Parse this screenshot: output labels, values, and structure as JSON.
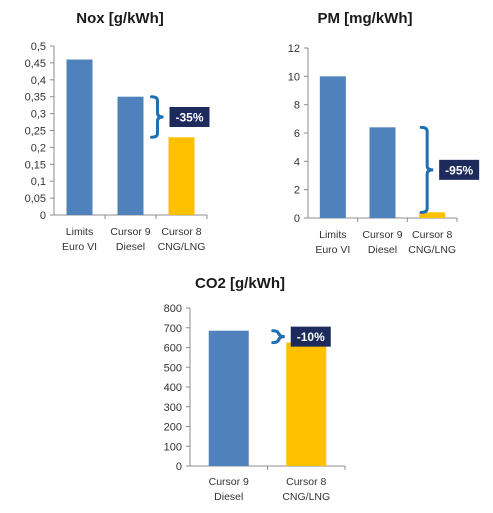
{
  "colors": {
    "blue": "#4F81BD",
    "yellow": "#FFC000",
    "bracket": "#1F6FB5",
    "callout_bg": "#1C2A5C",
    "axis": "#8c8c8c"
  },
  "chart_data": [
    {
      "type": "bar",
      "title": "Nox [g/kWh]",
      "categories": [
        [
          "Limits",
          "Euro VI"
        ],
        [
          "Cursor 9",
          "Diesel"
        ],
        [
          "Cursor 8",
          "CNG/LNG"
        ]
      ],
      "values": [
        0.46,
        0.35,
        0.23
      ],
      "bar_colors": [
        "blue",
        "blue",
        "yellow"
      ],
      "ylim": [
        0,
        0.5
      ],
      "yticks": [
        0,
        0.05,
        0.1,
        0.15,
        0.2,
        0.25,
        0.3,
        0.35,
        0.4,
        0.45,
        0.5
      ],
      "ytick_labels": [
        "0",
        "0,05",
        "0,1",
        "0,15",
        "0,2",
        "0,25",
        "0,3",
        "0,35",
        "0,4",
        "0,45",
        "0,5"
      ],
      "annotation": {
        "text": "-35%",
        "from": 0.35,
        "to": 0.23
      }
    },
    {
      "type": "bar",
      "title": "PM [mg/kWh]",
      "categories": [
        [
          "Limits",
          "Euro VI"
        ],
        [
          "Cursor 9",
          "Diesel"
        ],
        [
          "Cursor 8",
          "CNG/LNG"
        ]
      ],
      "values": [
        10,
        6.4,
        0.4
      ],
      "bar_colors": [
        "blue",
        "blue",
        "yellow"
      ],
      "ylim": [
        0,
        12
      ],
      "yticks": [
        0,
        2,
        4,
        6,
        8,
        10,
        12
      ],
      "ytick_labels": [
        "0",
        "2",
        "4",
        "6",
        "8",
        "10",
        "12"
      ],
      "annotation": {
        "text": "-95%",
        "from": 6.4,
        "to": 0.4
      }
    },
    {
      "type": "bar",
      "title": "CO2 [g/kWh]",
      "categories": [
        [
          "Cursor 9",
          "Diesel"
        ],
        [
          "Cursor 8",
          "CNG/LNG"
        ]
      ],
      "values": [
        685,
        625
      ],
      "bar_colors": [
        "blue",
        "yellow"
      ],
      "ylim": [
        0,
        800
      ],
      "yticks": [
        0,
        100,
        200,
        300,
        400,
        500,
        600,
        700,
        800
      ],
      "ytick_labels": [
        "0",
        "100",
        "200",
        "300",
        "400",
        "500",
        "600",
        "700",
        "800"
      ],
      "annotation": {
        "text": "-10%",
        "from": 685,
        "to": 625
      }
    }
  ]
}
